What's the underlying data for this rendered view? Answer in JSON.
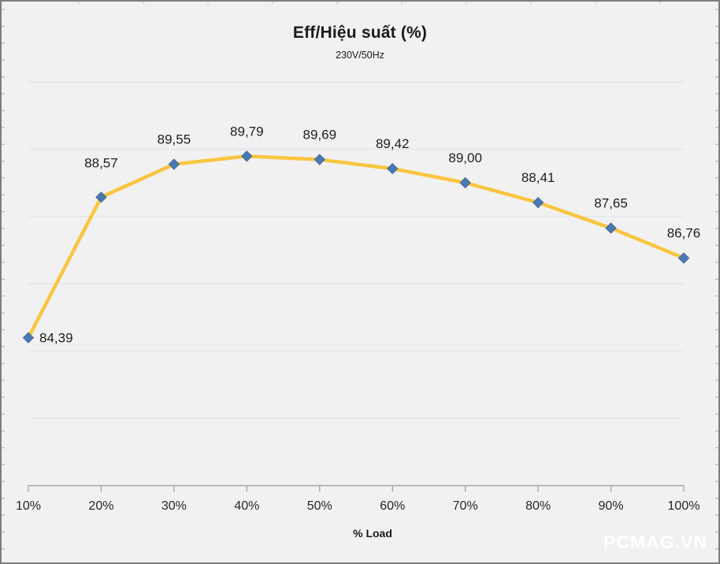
{
  "header": {
    "title": "Eff/Hiệu suất (%)",
    "subtitle": "230V/50Hz"
  },
  "watermark": "PCMAG.VN",
  "chart_data": {
    "type": "line",
    "title": "Eff/Hiệu suất (%)",
    "subtitle": "230V/50Hz",
    "xlabel": "% Load",
    "ylabel": "",
    "categories": [
      "10%",
      "20%",
      "30%",
      "40%",
      "50%",
      "60%",
      "70%",
      "80%",
      "90%",
      "100%"
    ],
    "series": [
      {
        "name": "Eff/Hiệu suất (%)",
        "values": [
          84.39,
          88.57,
          89.55,
          89.79,
          89.69,
          89.42,
          89.0,
          88.41,
          87.65,
          86.76
        ]
      }
    ],
    "data_labels": [
      "84,39",
      "88,57",
      "89,55",
      "89,79",
      "89,69",
      "89,42",
      "89,00",
      "88,41",
      "87,65",
      "86,76"
    ],
    "ylim": [
      80,
      92
    ],
    "gridline_interval": 2,
    "grid": true,
    "legend": "none",
    "colors": {
      "line": "#FAC53F",
      "marker_fill": "#4B79B3",
      "marker_stroke": "#3F699C",
      "gridline": "#DCE3EF",
      "axis": "#9B9B9B",
      "text": "#262626",
      "background": "#F1F1F1",
      "frame_border": "#7E7E7E"
    },
    "marker_shape": "diamond"
  }
}
